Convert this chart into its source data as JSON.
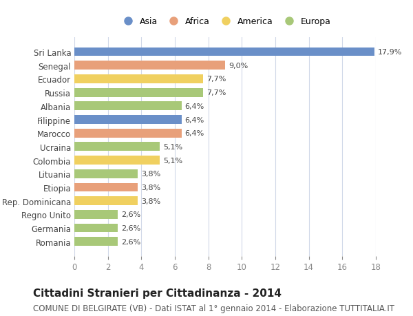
{
  "categories": [
    "Sri Lanka",
    "Senegal",
    "Ecuador",
    "Russia",
    "Albania",
    "Filippine",
    "Marocco",
    "Ucraina",
    "Colombia",
    "Lituania",
    "Etiopia",
    "Rep. Dominicana",
    "Regno Unito",
    "Germania",
    "Romania"
  ],
  "values": [
    17.9,
    9.0,
    7.7,
    7.7,
    6.4,
    6.4,
    6.4,
    5.1,
    5.1,
    3.8,
    3.8,
    3.8,
    2.6,
    2.6,
    2.6
  ],
  "labels": [
    "17,9%",
    "9,0%",
    "7,7%",
    "7,7%",
    "6,4%",
    "6,4%",
    "6,4%",
    "5,1%",
    "5,1%",
    "3,8%",
    "3,8%",
    "3,8%",
    "2,6%",
    "2,6%",
    "2,6%"
  ],
  "continents": [
    "Asia",
    "Africa",
    "America",
    "Europa",
    "Europa",
    "Asia",
    "Africa",
    "Europa",
    "America",
    "Europa",
    "Africa",
    "America",
    "Europa",
    "Europa",
    "Europa"
  ],
  "colors": {
    "Asia": "#6a8fc8",
    "Africa": "#e8a07a",
    "America": "#f0d060",
    "Europa": "#a8c878"
  },
  "legend_order": [
    "Asia",
    "Africa",
    "America",
    "Europa"
  ],
  "xlim": [
    0,
    18
  ],
  "xticks": [
    0,
    2,
    4,
    6,
    8,
    10,
    12,
    14,
    16,
    18
  ],
  "title": "Cittadini Stranieri per Cittadinanza - 2014",
  "subtitle": "COMUNE DI BELGIRATE (VB) - Dati ISTAT al 1° gennaio 2014 - Elaborazione TUTTITALIA.IT",
  "title_fontsize": 11,
  "subtitle_fontsize": 8.5,
  "background_color": "#ffffff",
  "bar_height": 0.65,
  "grid_color": "#d0d8e8"
}
